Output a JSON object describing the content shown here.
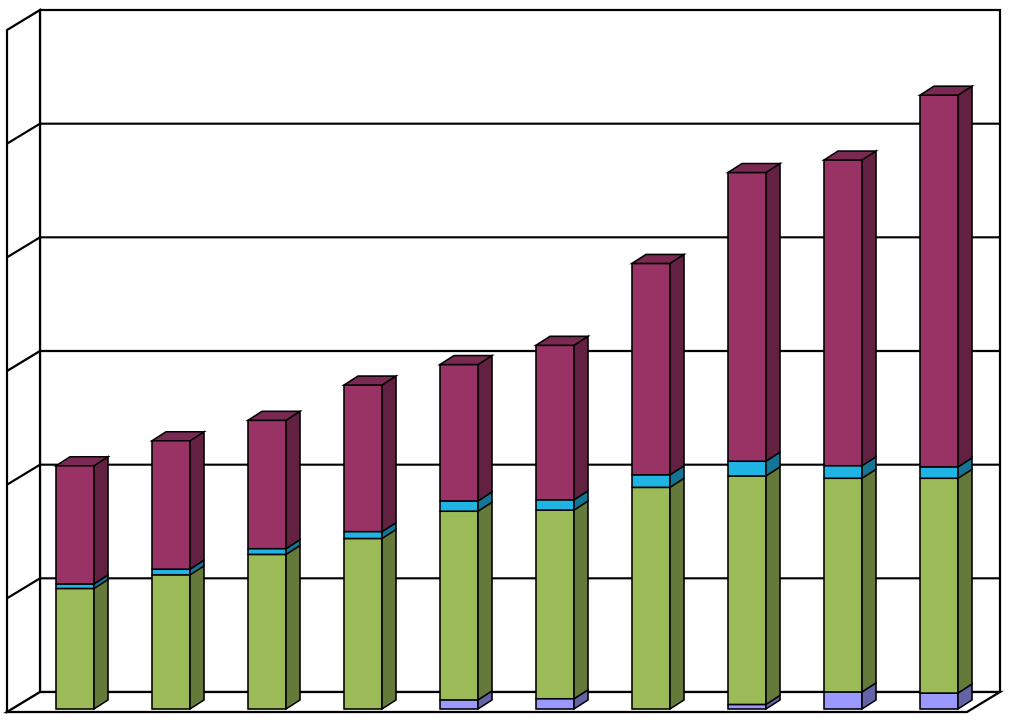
{
  "chart_data": {
    "type": "bar",
    "stacked": true,
    "three_d": true,
    "title": "",
    "xlabel": "",
    "ylabel": "",
    "ylim": [
      0,
      6
    ],
    "grid": true,
    "legend": "none",
    "categories": [
      "",
      "",
      "",
      "",
      "",
      "",
      "",
      "",
      "",
      ""
    ],
    "series": [
      {
        "color": "#9999ff",
        "values": [
          0.0,
          0.0,
          0.0,
          0.0,
          0.08,
          0.09,
          0.0,
          0.04,
          0.15,
          0.14
        ]
      },
      {
        "color": "#9bbb59",
        "values": [
          1.06,
          1.18,
          1.36,
          1.5,
          1.66,
          1.66,
          1.95,
          2.01,
          1.88,
          1.89
        ]
      },
      {
        "color": "#1fb4e4",
        "values": [
          0.04,
          0.05,
          0.05,
          0.06,
          0.09,
          0.09,
          0.11,
          0.13,
          0.11,
          0.1
        ]
      },
      {
        "color": "#993366",
        "values": [
          1.04,
          1.13,
          1.13,
          1.29,
          1.2,
          1.36,
          1.86,
          2.54,
          2.69,
          3.27
        ]
      }
    ],
    "colors": {
      "floor": "#ffffff",
      "gridline": "#000000"
    }
  }
}
